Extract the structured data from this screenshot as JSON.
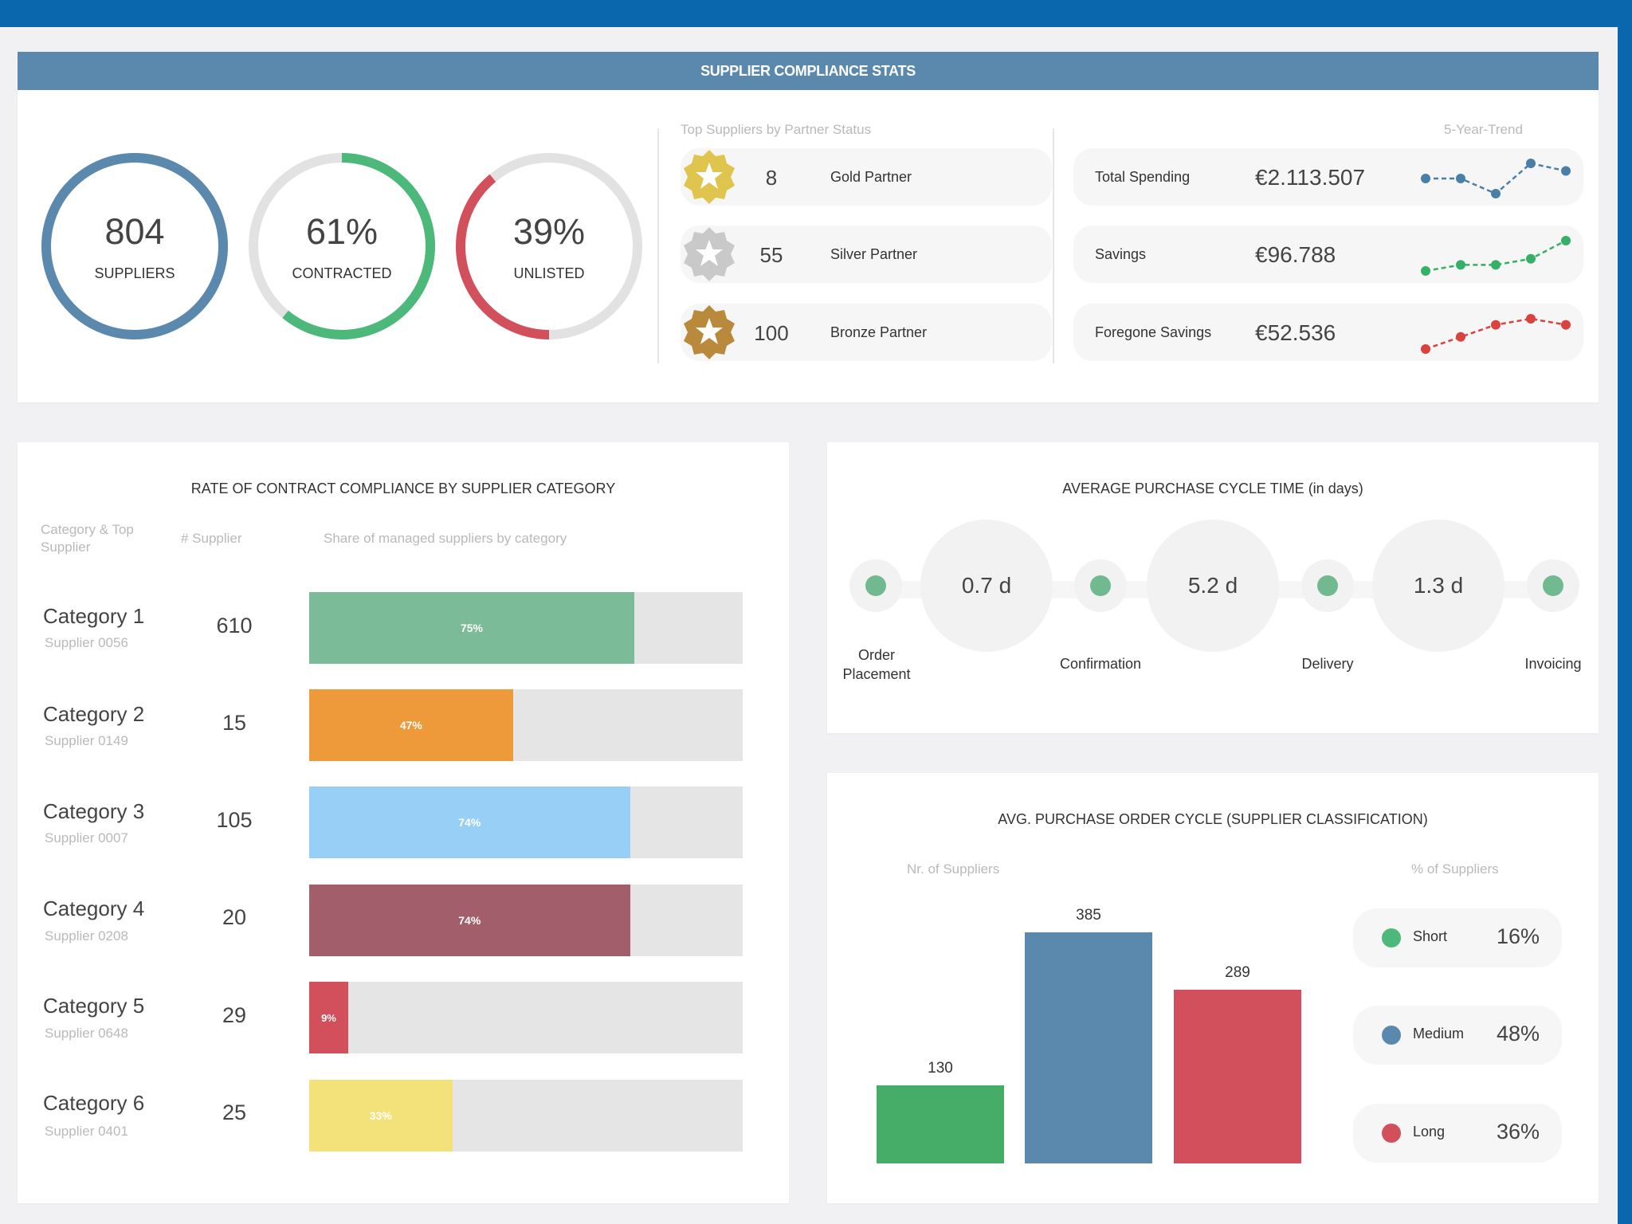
{
  "colors": {
    "topbar": "#0a66ad",
    "header": "#5b89ad",
    "blue": "#5b89ad",
    "green": "#4caf6e",
    "red": "#d1505c",
    "gray_ring": "#e2e2e2"
  },
  "stats": {
    "title": "SUPPLIER COMPLIANCE STATS",
    "donuts": [
      {
        "value": "804",
        "label": "SUPPLIERS",
        "fraction": 1.0,
        "color": "#5b89ad"
      },
      {
        "value": "61%",
        "label": "CONTRACTED",
        "fraction": 0.61,
        "color": "#4cb87a"
      },
      {
        "value": "39%",
        "label": "UNLISTED",
        "fraction": 0.39,
        "color": "#d1505c"
      }
    ],
    "partners_title": "Top Suppliers by Partner Status",
    "partners": [
      {
        "count": "8",
        "label": "Gold Partner",
        "icon": "gold-medal-icon",
        "color": "#dfc54e"
      },
      {
        "count": "55",
        "label": "Silver Partner",
        "icon": "silver-medal-icon",
        "color": "#c9c9c9"
      },
      {
        "count": "100",
        "label": "Bronze Partner",
        "icon": "bronze-medal-icon",
        "color": "#b98a3c"
      }
    ],
    "trend_title": "5-Year-Trend",
    "kpis": [
      {
        "label": "Total Spending",
        "value": "€2.113.507",
        "color": "#4a7fa8",
        "trend": [
          3,
          3,
          1,
          5,
          4
        ]
      },
      {
        "label": "Savings",
        "value": "€96.788",
        "color": "#35b066",
        "trend": [
          1,
          2,
          2,
          3,
          6
        ]
      },
      {
        "label": "Foregone Savings",
        "value": "€52.536",
        "color": "#d9423d",
        "trend": [
          1,
          3,
          5,
          6,
          5
        ]
      }
    ]
  },
  "compliance": {
    "title": "RATE OF CONTRACT COMPLIANCE BY SUPPLIER CATEGORY",
    "col_category": "Category & Top Supplier",
    "col_supplier": "# Supplier",
    "col_share": "Share of managed suppliers by category",
    "rows": [
      {
        "name": "Category 1",
        "sub": "Supplier 0056",
        "count": "610",
        "pct_label": "75%",
        "pct": 0.75,
        "color": "#7bbb98"
      },
      {
        "name": "Category 2",
        "sub": "Supplier 0149",
        "count": "15",
        "pct_label": "47%",
        "pct": 0.47,
        "color": "#ee9a3a"
      },
      {
        "name": "Category 3",
        "sub": "Supplier 0007",
        "count": "105",
        "pct_label": "74%",
        "pct": 0.74,
        "color": "#98cff7"
      },
      {
        "name": "Category 4",
        "sub": "Supplier 0208",
        "count": "20",
        "pct_label": "74%",
        "pct": 0.74,
        "color": "#a35e6c"
      },
      {
        "name": "Category 5",
        "sub": "Supplier 0648",
        "count": "29",
        "pct_label": "9%",
        "pct": 0.09,
        "color": "#d1505c"
      },
      {
        "name": "Category 6",
        "sub": "Supplier 0401",
        "count": "25",
        "pct_label": "33%",
        "pct": 0.33,
        "color": "#f3e17a"
      }
    ]
  },
  "cycle": {
    "title": "AVERAGE PURCHASE CYCLE TIME (in days)",
    "stages": [
      "Order Placement",
      "Confirmation",
      "Delivery",
      "Invoicing"
    ],
    "durations": [
      "0.7 d",
      "5.2 d",
      "1.3 d"
    ]
  },
  "order_cycle": {
    "title": "AVG. PURCHASE ORDER CYCLE (SUPPLIER CLASSIFICATION)",
    "left_label": "Nr. of Suppliers",
    "right_label": "% of Suppliers",
    "legend": [
      {
        "name": "Short",
        "pct": "16%",
        "color": "#4cb87a"
      },
      {
        "name": "Medium",
        "pct": "48%",
        "color": "#5b89ad"
      },
      {
        "name": "Long",
        "pct": "36%",
        "color": "#d1505c"
      }
    ]
  },
  "chart_data": {
    "type": "bar",
    "categories": [
      "Short",
      "Medium",
      "Long"
    ],
    "values": [
      130,
      385,
      289
    ],
    "ylabel": "Nr. of Suppliers",
    "colors": [
      "#46ad68",
      "#5b89ad",
      "#d1505c"
    ]
  }
}
